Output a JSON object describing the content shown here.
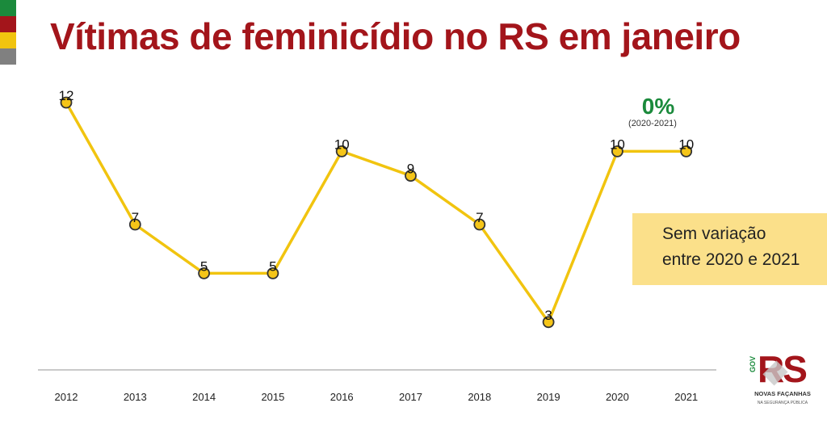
{
  "title": "Vítimas de feminicídio no RS em janeiro",
  "flag_colors": [
    "#1b8a3c",
    "#a3151b",
    "#f1c40f",
    "#808080"
  ],
  "callout": {
    "line1": "Sem variação",
    "line2": "entre 2020 e 2021"
  },
  "variation": {
    "value": "0%",
    "period": "(2020-2021)"
  },
  "logo": {
    "brand": "RS",
    "gov": "GOV",
    "tagline": "NOVAS FAÇANHAS",
    "subtitle": "NA SEGURANÇA PÚBLICA"
  },
  "colors": {
    "line": "#f1c40f",
    "marker_fill": "#f5c518",
    "marker_stroke": "#333333",
    "title": "#a3151b",
    "variation": "#1b8a3c",
    "callout_bg": "#fbe08a"
  },
  "chart_data": {
    "type": "line",
    "title": "Vítimas de feminicídio no RS em janeiro",
    "xlabel": "",
    "ylabel": "",
    "grid": false,
    "ylim": [
      0,
      12
    ],
    "categories": [
      "2012",
      "2013",
      "2014",
      "2015",
      "2016",
      "2017",
      "2018",
      "2019",
      "2020",
      "2021"
    ],
    "series": [
      {
        "values": [
          12,
          7,
          5,
          5,
          10,
          9,
          7,
          3,
          10,
          10
        ]
      }
    ]
  }
}
